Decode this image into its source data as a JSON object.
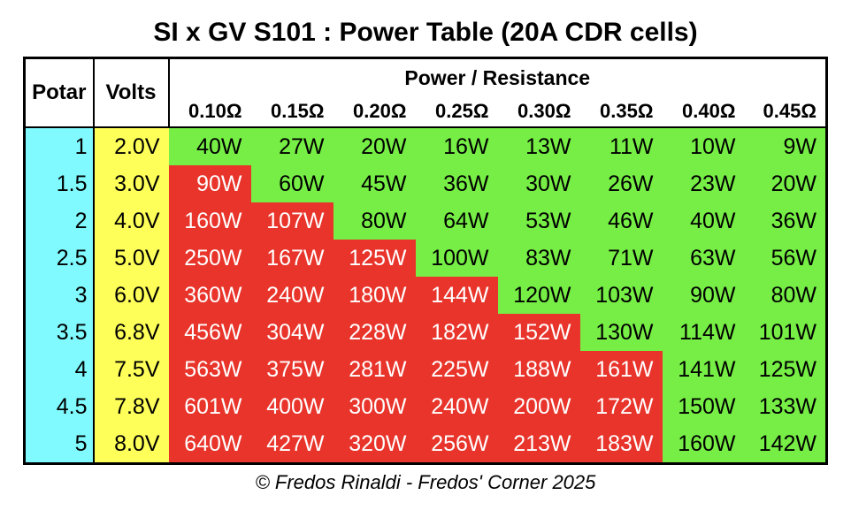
{
  "title": "SI x GV S101 : Power Table (20A CDR cells)",
  "footer": "© Fredos Rinaldi - Fredos' Corner 2025",
  "colors": {
    "potar_bg": "#80FAFF",
    "volts_bg": "#FFFF5A",
    "safe_bg": "#76EE45",
    "over_bg": "#E8342B",
    "safe_text": "#000000",
    "over_text": "#FFFFFF",
    "border": "#000000"
  },
  "table": {
    "col1_header": "Potar",
    "col2_header": "Volts",
    "group_header": "Power / Resistance",
    "resistance_headers": [
      "0.10Ω",
      "0.15Ω",
      "0.20Ω",
      "0.25Ω",
      "0.30Ω",
      "0.35Ω",
      "0.40Ω",
      "0.45Ω"
    ],
    "rows": [
      {
        "potar": "1",
        "volts": "2.0V",
        "values": [
          "40W",
          "27W",
          "20W",
          "16W",
          "13W",
          "11W",
          "10W",
          "9W"
        ],
        "red_count": 0
      },
      {
        "potar": "1.5",
        "volts": "3.0V",
        "values": [
          "90W",
          "60W",
          "45W",
          "36W",
          "30W",
          "26W",
          "23W",
          "20W"
        ],
        "red_count": 1
      },
      {
        "potar": "2",
        "volts": "4.0V",
        "values": [
          "160W",
          "107W",
          "80W",
          "64W",
          "53W",
          "46W",
          "40W",
          "36W"
        ],
        "red_count": 2
      },
      {
        "potar": "2.5",
        "volts": "5.0V",
        "values": [
          "250W",
          "167W",
          "125W",
          "100W",
          "83W",
          "71W",
          "63W",
          "56W"
        ],
        "red_count": 3
      },
      {
        "potar": "3",
        "volts": "6.0V",
        "values": [
          "360W",
          "240W",
          "180W",
          "144W",
          "120W",
          "103W",
          "90W",
          "80W"
        ],
        "red_count": 4
      },
      {
        "potar": "3.5",
        "volts": "6.8V",
        "values": [
          "456W",
          "304W",
          "228W",
          "182W",
          "152W",
          "130W",
          "114W",
          "101W"
        ],
        "red_count": 5
      },
      {
        "potar": "4",
        "volts": "7.5V",
        "values": [
          "563W",
          "375W",
          "281W",
          "225W",
          "188W",
          "161W",
          "141W",
          "125W"
        ],
        "red_count": 6
      },
      {
        "potar": "4.5",
        "volts": "7.8V",
        "values": [
          "601W",
          "400W",
          "300W",
          "240W",
          "200W",
          "172W",
          "150W",
          "133W"
        ],
        "red_count": 6
      },
      {
        "potar": "5",
        "volts": "8.0V",
        "values": [
          "640W",
          "427W",
          "320W",
          "256W",
          "213W",
          "183W",
          "160W",
          "142W"
        ],
        "red_count": 6
      }
    ]
  },
  "chart_data": {
    "type": "table",
    "title": "SI x GV S101 : Power Table (20A CDR cells)",
    "columns": [
      "Potar",
      "Volts",
      "0.10Ω",
      "0.15Ω",
      "0.20Ω",
      "0.25Ω",
      "0.30Ω",
      "0.35Ω",
      "0.40Ω",
      "0.45Ω"
    ],
    "rows": [
      [
        "1",
        "2.0V",
        "40W",
        "27W",
        "20W",
        "16W",
        "13W",
        "11W",
        "10W",
        "9W"
      ],
      [
        "1.5",
        "3.0V",
        "90W",
        "60W",
        "45W",
        "36W",
        "30W",
        "26W",
        "23W",
        "20W"
      ],
      [
        "2",
        "4.0V",
        "160W",
        "107W",
        "80W",
        "64W",
        "53W",
        "46W",
        "40W",
        "36W"
      ],
      [
        "2.5",
        "5.0V",
        "250W",
        "167W",
        "125W",
        "100W",
        "83W",
        "71W",
        "63W",
        "56W"
      ],
      [
        "3",
        "6.0V",
        "360W",
        "240W",
        "180W",
        "144W",
        "120W",
        "103W",
        "90W",
        "80W"
      ],
      [
        "3.5",
        "6.8V",
        "456W",
        "304W",
        "228W",
        "182W",
        "152W",
        "130W",
        "114W",
        "101W"
      ],
      [
        "4",
        "7.5V",
        "563W",
        "375W",
        "281W",
        "225W",
        "188W",
        "161W",
        "141W",
        "125W"
      ],
      [
        "4.5",
        "7.8V",
        "601W",
        "400W",
        "300W",
        "240W",
        "200W",
        "172W",
        "150W",
        "133W"
      ],
      [
        "5",
        "8.0V",
        "640W",
        "427W",
        "320W",
        "256W",
        "213W",
        "183W",
        "160W",
        "142W"
      ]
    ],
    "red_cells_per_row": [
      0,
      1,
      2,
      3,
      4,
      5,
      6,
      6,
      6
    ],
    "cell_colors": {
      "red": "#E8342B",
      "green": "#76EE45",
      "potar_column": "#80FAFF",
      "volts_column": "#FFFF5A"
    }
  }
}
